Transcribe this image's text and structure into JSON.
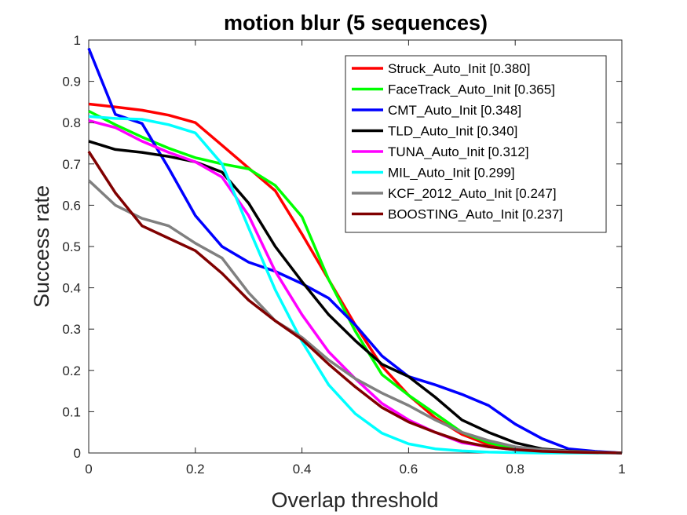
{
  "chart_data": {
    "type": "line",
    "title": "motion blur (5 sequences)",
    "xlabel": "Overlap threshold",
    "ylabel": "Success rate",
    "xlim": [
      0,
      1
    ],
    "ylim": [
      0,
      1
    ],
    "x_ticks": [
      "0",
      "0.2",
      "0.4",
      "0.6",
      "0.8",
      "1"
    ],
    "y_ticks": [
      "0",
      "0.1",
      "0.2",
      "0.3",
      "0.4",
      "0.5",
      "0.6",
      "0.7",
      "0.8",
      "0.9",
      "1"
    ],
    "legend_placement": "top-right",
    "grid": false,
    "x": [
      0,
      0.05,
      0.1,
      0.15,
      0.2,
      0.25,
      0.3,
      0.35,
      0.4,
      0.45,
      0.5,
      0.55,
      0.6,
      0.65,
      0.7,
      0.75,
      0.8,
      0.85,
      0.9,
      0.95,
      1
    ],
    "series": [
      {
        "name": "Struck_Auto_Init [0.380]",
        "color": "#ff0000",
        "values": [
          0.845,
          0.838,
          0.83,
          0.818,
          0.8,
          0.745,
          0.69,
          0.635,
          0.53,
          0.42,
          0.31,
          0.21,
          0.14,
          0.085,
          0.045,
          0.02,
          0.01,
          0.005,
          0.003,
          0.002,
          0
        ]
      },
      {
        "name": "FaceTrack_Auto_Init [0.365]",
        "color": "#00ff00",
        "values": [
          0.828,
          0.795,
          0.765,
          0.738,
          0.715,
          0.7,
          0.688,
          0.648,
          0.572,
          0.42,
          0.295,
          0.19,
          0.14,
          0.095,
          0.05,
          0.025,
          0.01,
          0.005,
          0.003,
          0.002,
          0
        ]
      },
      {
        "name": "CMT_Auto_Init [0.348]",
        "color": "#0000ff",
        "values": [
          0.98,
          0.82,
          0.798,
          0.69,
          0.575,
          0.5,
          0.462,
          0.44,
          0.41,
          0.375,
          0.31,
          0.235,
          0.185,
          0.165,
          0.142,
          0.115,
          0.07,
          0.035,
          0.01,
          0.004,
          0
        ]
      },
      {
        "name": "TLD_Auto_Init [0.340]",
        "color": "#000000",
        "values": [
          0.755,
          0.735,
          0.728,
          0.718,
          0.705,
          0.68,
          0.605,
          0.5,
          0.415,
          0.335,
          0.272,
          0.215,
          0.185,
          0.135,
          0.08,
          0.05,
          0.025,
          0.01,
          0.005,
          0.002,
          0
        ]
      },
      {
        "name": "TUNA_Auto_Init [0.312]",
        "color": "#ff00ff",
        "values": [
          0.805,
          0.788,
          0.755,
          0.728,
          0.705,
          0.668,
          0.575,
          0.44,
          0.335,
          0.245,
          0.18,
          0.12,
          0.08,
          0.05,
          0.025,
          0.015,
          0.008,
          0.004,
          0.002,
          0.001,
          0
        ]
      },
      {
        "name": "MIL_Auto_Init [0.299]",
        "color": "#00ffff",
        "values": [
          0.815,
          0.81,
          0.808,
          0.795,
          0.775,
          0.7,
          0.545,
          0.395,
          0.27,
          0.165,
          0.095,
          0.048,
          0.022,
          0.01,
          0.005,
          0.002,
          0.001,
          0,
          0,
          0,
          0
        ]
      },
      {
        "name": "KCF_2012_Auto_Init [0.247]",
        "color": "#808080",
        "values": [
          0.66,
          0.6,
          0.568,
          0.55,
          0.508,
          0.472,
          0.388,
          0.32,
          0.28,
          0.225,
          0.18,
          0.145,
          0.115,
          0.08,
          0.05,
          0.03,
          0.015,
          0.008,
          0.004,
          0.002,
          0
        ]
      },
      {
        "name": "BOOSTING_Auto_Init [0.237]",
        "color": "#800000",
        "values": [
          0.73,
          0.63,
          0.55,
          0.52,
          0.49,
          0.435,
          0.37,
          0.32,
          0.275,
          0.215,
          0.16,
          0.11,
          0.075,
          0.05,
          0.028,
          0.015,
          0.008,
          0.004,
          0.002,
          0.001,
          0
        ]
      }
    ]
  }
}
